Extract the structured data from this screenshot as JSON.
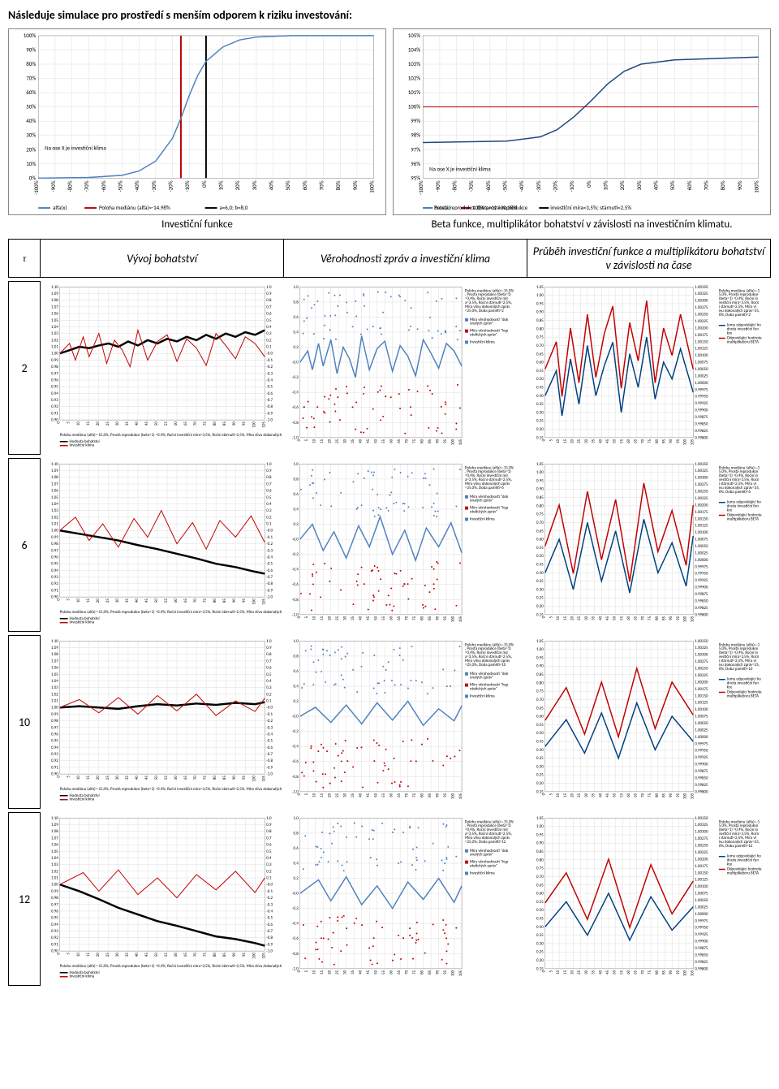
{
  "title": "Následuje simulace pro prostředí s menším odporem k riziku investování:",
  "top_left_chart": {
    "type": "line",
    "title": "Investiční funkce",
    "note_in": "Na ose X je investiční klima",
    "x_range": [
      -100,
      100
    ],
    "x_step": 10,
    "x_suffix": "%",
    "y_range": [
      0,
      100
    ],
    "y_step": 10,
    "y_suffix": "%",
    "series": [
      {
        "name": "alfa(x)",
        "color": "#4f81bd",
        "width": 1.5,
        "points": [
          [
            -100,
            0
          ],
          [
            -70,
            0.5
          ],
          [
            -50,
            2
          ],
          [
            -40,
            5
          ],
          [
            -30,
            12
          ],
          [
            -20,
            28
          ],
          [
            -15,
            42
          ],
          [
            -10,
            58
          ],
          [
            -5,
            72
          ],
          [
            0,
            82
          ],
          [
            10,
            92
          ],
          [
            20,
            97
          ],
          [
            30,
            99
          ],
          [
            50,
            100
          ],
          [
            100,
            100
          ]
        ]
      }
    ],
    "verticals": [
      {
        "x": -14.98,
        "color": "#c00000"
      },
      {
        "x": 0,
        "color": "#000"
      }
    ],
    "legend": [
      {
        "color": "#4f81bd",
        "label": "alfa(x)"
      },
      {
        "color": "#c00000",
        "label": "Poloha mediánu (alfa)=-14,98%"
      },
      {
        "color": "#000",
        "label": "a=6,0; b=8,0"
      }
    ]
  },
  "top_right_chart": {
    "type": "line",
    "title": "Beta funkce, multiplikátor bohatství v závislosti na investičním klimatu.",
    "note_in": "Na ose X je investiční klima",
    "x_range": [
      -100,
      100
    ],
    "x_step": 10,
    "x_suffix": "%",
    "y_range": [
      95,
      105
    ],
    "y_step": 1,
    "y_suffix": "%",
    "series": [
      {
        "name": "beta(x)",
        "color": "#1f497d",
        "width": 1.5,
        "points": [
          [
            -100,
            97.5
          ],
          [
            -50,
            97.6
          ],
          [
            -30,
            97.9
          ],
          [
            -20,
            98.4
          ],
          [
            -10,
            99.3
          ],
          [
            0,
            100.4
          ],
          [
            10,
            101.6
          ],
          [
            20,
            102.5
          ],
          [
            30,
            103
          ],
          [
            50,
            103.3
          ],
          [
            100,
            103.5
          ]
        ]
      },
      {
        "name": "100% prostá reprodukce",
        "color": "#c00000",
        "width": 1,
        "points": [
          [
            -100,
            100
          ],
          [
            100,
            100
          ]
        ]
      }
    ],
    "legend": [
      {
        "color": "#1f497d",
        "label": "beta(x)"
      },
      {
        "color": "#c00000",
        "label": "100% prostá reprodukce"
      },
      {
        "color": "#4f81bd",
        "label": "Prostá reprodukce (beta=1) =00,38%"
      },
      {
        "color": "#000",
        "label": "investiční míra=3,5%; stárnutí=2,5%"
      }
    ]
  },
  "table_headers": {
    "tau": "τ",
    "col1": "Vývoj bohatství",
    "col2": "Věrohodnosti zpráv a investiční klima",
    "col3": "Průběh investiční funkce a multiplikátoru bohatství v závislosti na čase"
  },
  "rows": [
    {
      "tau": "2",
      "memory": "2"
    },
    {
      "tau": "6",
      "memory": "6"
    },
    {
      "tau": "10",
      "memory": "10"
    },
    {
      "tau": "12",
      "memory": "12"
    }
  ],
  "wealth_chart_template": {
    "type": "line",
    "x_range": [
      0,
      105
    ],
    "x_step": 5,
    "y_left": [
      0.9,
      1.1
    ],
    "y_left_step": 0.01,
    "y_right": [
      -1.0,
      1.0
    ],
    "y_right_step": 0.1,
    "colors": {
      "wealth": "#000",
      "wealth_fill": "#000",
      "klima": "#c00000",
      "right_ticks": "#c00000"
    },
    "legend_prefix": "Poloha mediánu (alfa)=-15,0%, Prostá reprodukce (beta=1) =0,4%, Roční investiční míra=3,5%, Roční stárnutí=2,5%, Míra vlivu dokonalých zpráv=25,0%, Doba paměti=",
    "legend_items": [
      "Hodnota bohatství",
      "Investiční klima"
    ]
  },
  "wealth_series": {
    "2": {
      "wealth": [
        [
          0,
          1.0
        ],
        [
          5,
          1.005
        ],
        [
          10,
          1.01
        ],
        [
          15,
          1.008
        ],
        [
          20,
          1.012
        ],
        [
          25,
          1.015
        ],
        [
          30,
          1.01
        ],
        [
          35,
          1.018
        ],
        [
          40,
          1.012
        ],
        [
          45,
          1.02
        ],
        [
          50,
          1.015
        ],
        [
          55,
          1.022
        ],
        [
          60,
          1.018
        ],
        [
          65,
          1.025
        ],
        [
          70,
          1.02
        ],
        [
          75,
          1.028
        ],
        [
          80,
          1.022
        ],
        [
          85,
          1.03
        ],
        [
          90,
          1.025
        ],
        [
          95,
          1.032
        ],
        [
          100,
          1.028
        ],
        [
          105,
          1.035
        ]
      ],
      "klima": [
        [
          0,
          0.0
        ],
        [
          5,
          0.15
        ],
        [
          8,
          -0.1
        ],
        [
          12,
          0.25
        ],
        [
          15,
          -0.05
        ],
        [
          20,
          0.3
        ],
        [
          24,
          -0.15
        ],
        [
          28,
          0.2
        ],
        [
          32,
          0.05
        ],
        [
          36,
          -0.2
        ],
        [
          40,
          0.35
        ],
        [
          45,
          -0.1
        ],
        [
          50,
          0.18
        ],
        [
          55,
          0.28
        ],
        [
          60,
          -0.12
        ],
        [
          65,
          0.22
        ],
        [
          70,
          0.08
        ],
        [
          75,
          -0.18
        ],
        [
          80,
          0.3
        ],
        [
          85,
          0.12
        ],
        [
          90,
          -0.08
        ],
        [
          95,
          0.25
        ],
        [
          100,
          0.15
        ],
        [
          105,
          -0.05
        ]
      ]
    },
    "6": {
      "wealth": [
        [
          0,
          1.0
        ],
        [
          10,
          0.995
        ],
        [
          20,
          0.99
        ],
        [
          30,
          0.985
        ],
        [
          40,
          0.978
        ],
        [
          50,
          0.972
        ],
        [
          60,
          0.965
        ],
        [
          70,
          0.958
        ],
        [
          80,
          0.95
        ],
        [
          90,
          0.945
        ],
        [
          100,
          0.938
        ],
        [
          105,
          0.935
        ]
      ],
      "klima": [
        [
          0,
          0.0
        ],
        [
          8,
          0.2
        ],
        [
          15,
          -0.15
        ],
        [
          22,
          0.1
        ],
        [
          30,
          -0.25
        ],
        [
          38,
          0.18
        ],
        [
          45,
          -0.1
        ],
        [
          52,
          0.3
        ],
        [
          60,
          -0.2
        ],
        [
          68,
          0.12
        ],
        [
          75,
          -0.28
        ],
        [
          82,
          0.15
        ],
        [
          90,
          -0.1
        ],
        [
          98,
          0.22
        ],
        [
          105,
          -0.18
        ]
      ]
    },
    "10": {
      "wealth": [
        [
          0,
          1.0
        ],
        [
          10,
          1.002
        ],
        [
          20,
          1.0
        ],
        [
          30,
          0.998
        ],
        [
          40,
          1.002
        ],
        [
          50,
          1.005
        ],
        [
          60,
          1.003
        ],
        [
          70,
          1.006
        ],
        [
          80,
          1.004
        ],
        [
          90,
          1.007
        ],
        [
          100,
          1.005
        ],
        [
          105,
          1.008
        ]
      ],
      "klima": [
        [
          0,
          0.0
        ],
        [
          10,
          0.12
        ],
        [
          20,
          -0.08
        ],
        [
          30,
          0.15
        ],
        [
          40,
          -0.1
        ],
        [
          50,
          0.18
        ],
        [
          60,
          -0.05
        ],
        [
          70,
          0.2
        ],
        [
          80,
          -0.12
        ],
        [
          90,
          0.1
        ],
        [
          100,
          -0.06
        ],
        [
          105,
          0.14
        ]
      ]
    },
    "12": {
      "wealth": [
        [
          0,
          1.0
        ],
        [
          10,
          0.99
        ],
        [
          20,
          0.978
        ],
        [
          30,
          0.965
        ],
        [
          40,
          0.955
        ],
        [
          50,
          0.945
        ],
        [
          60,
          0.938
        ],
        [
          70,
          0.93
        ],
        [
          80,
          0.922
        ],
        [
          90,
          0.918
        ],
        [
          100,
          0.912
        ],
        [
          105,
          0.908
        ]
      ],
      "klima": [
        [
          0,
          0.0
        ],
        [
          12,
          0.18
        ],
        [
          20,
          -0.1
        ],
        [
          30,
          0.22
        ],
        [
          40,
          -0.15
        ],
        [
          50,
          0.1
        ],
        [
          60,
          -0.2
        ],
        [
          70,
          0.15
        ],
        [
          80,
          -0.08
        ],
        [
          90,
          0.2
        ],
        [
          100,
          -0.12
        ],
        [
          105,
          0.1
        ]
      ]
    }
  },
  "cred_chart_template": {
    "type": "scatter+line",
    "x_range": [
      0,
      105
    ],
    "x_step": 5,
    "y_range": [
      -1.0,
      1.0
    ],
    "y_step": 0.2,
    "colors": {
      "good": "#4f81bd",
      "bad": "#c00000",
      "klima": "#4f81bd"
    },
    "side_text": {
      "prefix": "Poloha mediánu (alfa)=-15,0%, Prostá reprodukce (beta=1) =0,4%, Roční investiční míra=3,5%, Roční stárnutí=2,5%, Míra vlivu dokonalých zpráv=25,0%, Doba paměti=",
      "items": [
        "Míra věrohodnosti \"dokonalých zpráv\"",
        "Míry věrohodností \"hypotetických zpráv\"",
        "Investiční klima"
      ]
    }
  },
  "mult_chart_template": {
    "type": "line",
    "x_range": [
      0,
      105
    ],
    "x_step": 5,
    "y_left": [
      0.15,
      1.05
    ],
    "y_left_step": 0.05,
    "y_left_color": "#004080",
    "y_right": [
      0.998,
      1.0035
    ],
    "y_right_step": 0.00025,
    "y_right_color": "#c00000",
    "side_text": {
      "prefix": "Poloha mediánu (alfa)=-15,0%, Prostá reprodukce (beta=1) =0,4%, Roční investiční míra=3,5%, Roční stárnutí=2,5%, Míra vlivu dokonalých zpráv=25,0%, Doba paměti=",
      "items": [
        "Jemu odpovídající hodnota investiční funkce",
        "Odpovídající hodnota multiplikátoru BETA"
      ]
    }
  },
  "mult_series": {
    "2": {
      "inv": [
        [
          0,
          0.4
        ],
        [
          8,
          0.55
        ],
        [
          12,
          0.28
        ],
        [
          18,
          0.62
        ],
        [
          24,
          0.35
        ],
        [
          30,
          0.7
        ],
        [
          36,
          0.4
        ],
        [
          42,
          0.58
        ],
        [
          48,
          0.72
        ],
        [
          54,
          0.3
        ],
        [
          60,
          0.65
        ],
        [
          66,
          0.45
        ],
        [
          72,
          0.75
        ],
        [
          78,
          0.38
        ],
        [
          84,
          0.6
        ],
        [
          90,
          0.5
        ],
        [
          96,
          0.68
        ],
        [
          105,
          0.42
        ]
      ],
      "beta": [
        [
          0,
          1.0005
        ],
        [
          8,
          1.0015
        ],
        [
          12,
          0.9995
        ],
        [
          18,
          1.002
        ],
        [
          24,
          1.0
        ],
        [
          30,
          1.0025
        ],
        [
          36,
          1.0002
        ],
        [
          42,
          1.0018
        ],
        [
          48,
          1.0028
        ],
        [
          54,
          0.9998
        ],
        [
          60,
          1.0022
        ],
        [
          66,
          1.0008
        ],
        [
          72,
          1.003
        ],
        [
          78,
          1.0
        ],
        [
          84,
          1.002
        ],
        [
          90,
          1.001
        ],
        [
          96,
          1.0025
        ],
        [
          105,
          1.0005
        ]
      ]
    },
    "6": {
      "inv": [
        [
          0,
          0.4
        ],
        [
          10,
          0.6
        ],
        [
          20,
          0.3
        ],
        [
          30,
          0.7
        ],
        [
          40,
          0.35
        ],
        [
          50,
          0.65
        ],
        [
          60,
          0.28
        ],
        [
          70,
          0.72
        ],
        [
          80,
          0.4
        ],
        [
          90,
          0.58
        ],
        [
          100,
          0.32
        ],
        [
          105,
          0.62
        ]
      ],
      "beta": [
        [
          0,
          1.0005
        ],
        [
          10,
          1.002
        ],
        [
          20,
          0.9995
        ],
        [
          30,
          1.0025
        ],
        [
          40,
          1.0
        ],
        [
          50,
          1.0022
        ],
        [
          60,
          0.9992
        ],
        [
          70,
          1.0028
        ],
        [
          80,
          1.0003
        ],
        [
          90,
          1.0018
        ],
        [
          100,
          0.9998
        ],
        [
          105,
          1.002
        ]
      ]
    },
    "10": {
      "inv": [
        [
          0,
          0.42
        ],
        [
          15,
          0.58
        ],
        [
          28,
          0.38
        ],
        [
          40,
          0.62
        ],
        [
          52,
          0.35
        ],
        [
          65,
          0.68
        ],
        [
          78,
          0.4
        ],
        [
          90,
          0.6
        ],
        [
          105,
          0.45
        ]
      ],
      "beta": [
        [
          0,
          1.0006
        ],
        [
          15,
          1.0018
        ],
        [
          28,
          1.0001
        ],
        [
          40,
          1.002
        ],
        [
          52,
          1.0
        ],
        [
          65,
          1.0025
        ],
        [
          78,
          1.0003
        ],
        [
          90,
          1.002
        ],
        [
          105,
          1.0008
        ]
      ]
    },
    "12": {
      "inv": [
        [
          0,
          0.4
        ],
        [
          15,
          0.55
        ],
        [
          30,
          0.35
        ],
        [
          45,
          0.6
        ],
        [
          60,
          0.32
        ],
        [
          75,
          0.58
        ],
        [
          90,
          0.38
        ],
        [
          105,
          0.52
        ]
      ],
      "beta": [
        [
          0,
          1.0004
        ],
        [
          15,
          1.0015
        ],
        [
          30,
          0.9998
        ],
        [
          45,
          1.002
        ],
        [
          60,
          0.9995
        ],
        [
          75,
          1.0018
        ],
        [
          90,
          1.0
        ],
        [
          105,
          1.0012
        ]
      ]
    }
  }
}
